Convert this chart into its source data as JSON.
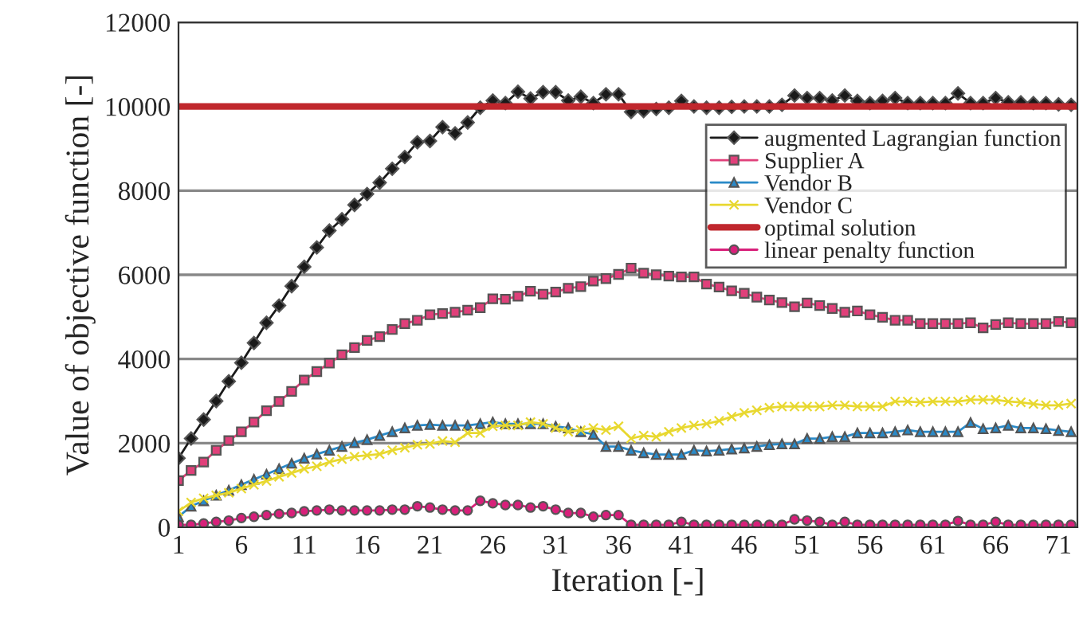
{
  "chart_data": {
    "type": "line",
    "xlabel": "Iteration [-]",
    "ylabel": "Value of objective function [-]",
    "x": [
      1,
      2,
      3,
      4,
      5,
      6,
      7,
      8,
      9,
      10,
      11,
      12,
      13,
      14,
      15,
      16,
      17,
      18,
      19,
      20,
      21,
      22,
      23,
      24,
      25,
      26,
      27,
      28,
      29,
      30,
      31,
      32,
      33,
      34,
      35,
      36,
      37,
      38,
      39,
      40,
      41,
      42,
      43,
      44,
      45,
      46,
      47,
      48,
      49,
      50,
      51,
      52,
      53,
      54,
      55,
      56,
      57,
      58,
      59,
      60,
      61,
      62,
      63,
      64,
      65,
      66,
      67,
      68,
      69,
      70,
      71,
      72
    ],
    "xlim": [
      1,
      72.5
    ],
    "xticks": [
      1,
      6,
      11,
      16,
      21,
      26,
      31,
      36,
      41,
      46,
      51,
      56,
      61,
      66,
      71
    ],
    "ylim": [
      0,
      12000
    ],
    "yticks": [
      0,
      2000,
      4000,
      6000,
      8000,
      10000,
      12000
    ],
    "grid": "y",
    "legend": "right",
    "series": [
      {
        "name": "augmented Lagrangian function",
        "color": "#1a1a1a",
        "marker": "diamond",
        "values": [
          1640,
          2110,
          2560,
          3000,
          3470,
          3910,
          4380,
          4860,
          5270,
          5730,
          6190,
          6650,
          7050,
          7320,
          7660,
          7920,
          8190,
          8520,
          8800,
          9150,
          9180,
          9510,
          9360,
          9620,
          9970,
          10140,
          10080,
          10350,
          10190,
          10340,
          10340,
          10140,
          10230,
          10080,
          10290,
          10290,
          9870,
          9890,
          9940,
          9970,
          10130,
          10000,
          9970,
          9970,
          9990,
          10000,
          10000,
          10000,
          10040,
          10260,
          10200,
          10200,
          10140,
          10260,
          10130,
          10080,
          10130,
          10200,
          10080,
          10080,
          10080,
          10080,
          10310,
          10080,
          10080,
          10200,
          10100,
          10100,
          10080,
          10080,
          10050,
          10040
        ]
      },
      {
        "name": "Supplier A",
        "color": "#e0407a",
        "marker": "square",
        "values": [
          1110,
          1350,
          1550,
          1830,
          2060,
          2270,
          2500,
          2770,
          2990,
          3230,
          3500,
          3700,
          3900,
          4100,
          4270,
          4440,
          4530,
          4700,
          4840,
          4920,
          5050,
          5080,
          5110,
          5160,
          5220,
          5430,
          5420,
          5490,
          5610,
          5540,
          5590,
          5680,
          5720,
          5850,
          5910,
          6010,
          6160,
          6040,
          6000,
          5970,
          5950,
          5950,
          5780,
          5710,
          5620,
          5560,
          5470,
          5400,
          5340,
          5240,
          5330,
          5270,
          5200,
          5110,
          5140,
          5050,
          4990,
          4920,
          4920,
          4840,
          4840,
          4840,
          4840,
          4860,
          4740,
          4820,
          4860,
          4840,
          4840,
          4840,
          4890,
          4860
        ]
      },
      {
        "name": "Vendor B",
        "color": "#2a8ac8",
        "marker": "triangle",
        "values": [
          250,
          500,
          630,
          760,
          880,
          1010,
          1140,
          1260,
          1390,
          1520,
          1640,
          1740,
          1830,
          1920,
          2010,
          2080,
          2180,
          2270,
          2360,
          2420,
          2440,
          2420,
          2420,
          2420,
          2460,
          2500,
          2460,
          2460,
          2460,
          2460,
          2400,
          2360,
          2270,
          2210,
          1920,
          1920,
          1830,
          1770,
          1730,
          1730,
          1730,
          1830,
          1810,
          1830,
          1860,
          1880,
          1920,
          1960,
          1980,
          1980,
          2110,
          2110,
          2150,
          2150,
          2240,
          2240,
          2240,
          2270,
          2310,
          2270,
          2270,
          2270,
          2270,
          2490,
          2340,
          2360,
          2420,
          2360,
          2360,
          2340,
          2300,
          2270
        ]
      },
      {
        "name": "Vendor C",
        "color": "#e8d830",
        "marker": "cross",
        "values": [
          380,
          590,
          690,
          760,
          820,
          920,
          1010,
          1100,
          1200,
          1290,
          1390,
          1450,
          1550,
          1620,
          1680,
          1710,
          1740,
          1830,
          1890,
          1960,
          1980,
          2050,
          2020,
          2240,
          2240,
          2400,
          2420,
          2420,
          2500,
          2460,
          2360,
          2270,
          2310,
          2360,
          2310,
          2400,
          2110,
          2180,
          2150,
          2270,
          2360,
          2420,
          2460,
          2530,
          2630,
          2720,
          2780,
          2840,
          2870,
          2870,
          2870,
          2870,
          2900,
          2900,
          2870,
          2870,
          2870,
          2990,
          2990,
          2970,
          2990,
          2990,
          2990,
          3030,
          3030,
          3030,
          2990,
          2970,
          2930,
          2900,
          2900,
          2940
        ]
      },
      {
        "name": "optimal solution",
        "color": "#c0272d",
        "marker": "none",
        "x": [
          1,
          72.5
        ],
        "values": [
          10000,
          10000
        ]
      },
      {
        "name": "linear penalty function",
        "color": "#d8207a",
        "marker": "circle",
        "values": [
          60,
          60,
          90,
          130,
          160,
          220,
          250,
          290,
          320,
          340,
          380,
          400,
          420,
          400,
          400,
          400,
          400,
          420,
          420,
          500,
          470,
          420,
          400,
          400,
          630,
          570,
          530,
          530,
          470,
          500,
          420,
          340,
          340,
          250,
          290,
          290,
          60,
          60,
          60,
          60,
          130,
          60,
          60,
          60,
          60,
          60,
          60,
          60,
          60,
          190,
          160,
          130,
          60,
          130,
          60,
          60,
          60,
          60,
          60,
          60,
          60,
          60,
          150,
          60,
          60,
          130,
          60,
          60,
          60,
          60,
          60,
          60
        ]
      }
    ]
  }
}
